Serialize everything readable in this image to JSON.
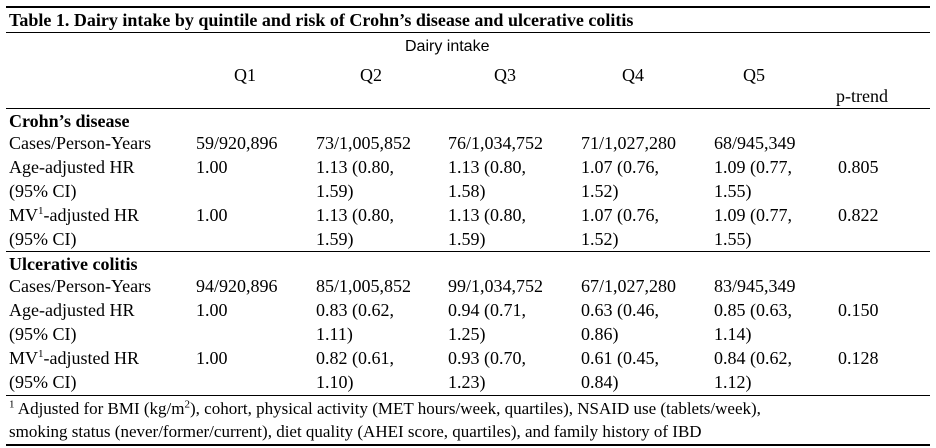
{
  "title": "Table 1. Dairy intake by quintile and risk of Crohn’s disease and ulcerative colitis",
  "header": {
    "group_label": "Dairy intake",
    "columns": [
      "Q1",
      "Q2",
      "Q3",
      "Q4",
      "Q5"
    ],
    "ptrend": "p-trend"
  },
  "sections": [
    {
      "name": "Crohn’s disease",
      "cases": {
        "label": "Cases/Person-Years",
        "values": [
          "59/920,896",
          "73/1,005,852",
          "76/1,034,752",
          "71/1,027,280",
          "68/945,349"
        ],
        "ptrend": ""
      },
      "age": {
        "label1": "Age-adjusted HR",
        "label2": "(95% CI)",
        "line1": [
          "1.00",
          "1.13 (0.80,",
          "1.13 (0.80,",
          "1.07 (0.76,",
          "1.09 (0.77,"
        ],
        "line2": [
          "",
          "1.59)",
          "1.58)",
          "1.52)",
          "1.55)"
        ],
        "ptrend": "0.805"
      },
      "mv": {
        "label_pre": "MV",
        "label_sup": "1",
        "label_post": "-adjusted HR",
        "label2": "(95% CI)",
        "line1": [
          "1.00",
          "1.13 (0.80,",
          "1.13 (0.80,",
          "1.07 (0.76,",
          "1.09 (0.77,"
        ],
        "line2": [
          "",
          "1.59)",
          "1.59)",
          "1.52)",
          "1.55)"
        ],
        "ptrend": "0.822"
      }
    },
    {
      "name": "Ulcerative colitis",
      "cases": {
        "label": "Cases/Person-Years",
        "values": [
          "94/920,896",
          "85/1,005,852",
          "99/1,034,752",
          "67/1,027,280",
          "83/945,349"
        ],
        "ptrend": ""
      },
      "age": {
        "label1": "Age-adjusted HR",
        "label2": "(95% CI)",
        "line1": [
          "1.00",
          "0.83 (0.62,",
          "0.94 (0.71,",
          "0.63 (0.46,",
          "0.85 (0.63,"
        ],
        "line2": [
          "",
          "1.11)",
          "1.25)",
          "0.86)",
          "1.14)"
        ],
        "ptrend": "0.150"
      },
      "mv": {
        "label_pre": "MV",
        "label_sup": "1",
        "label_post": "-adjusted HR",
        "label2": "(95% CI)",
        "line1": [
          "1.00",
          "0.82 (0.61,",
          "0.93 (0.70,",
          "0.61 (0.45,",
          "0.84 (0.62,"
        ],
        "line2": [
          "",
          "1.10)",
          "1.23)",
          "0.84)",
          "1.12)"
        ],
        "ptrend": "0.128"
      }
    }
  ],
  "footnote": {
    "sup1": "1",
    "part1": " Adjusted for BMI (kg/m",
    "sup2": "2",
    "part2": "), cohort, physical activity (MET hours/week, quartiles), NSAID use (tablets/week),",
    "line2": "smoking status (never/former/current), diet quality (AHEI score, quartiles), and family history of IBD"
  }
}
